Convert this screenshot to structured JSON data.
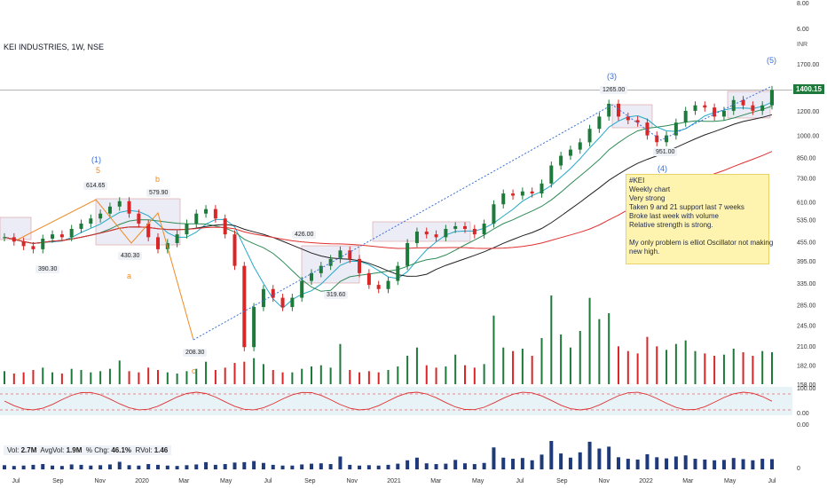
{
  "header": {
    "title": "KEI INDUSTRIES, 1W, NSE",
    "currency": "INR"
  },
  "last_price": "1400.15",
  "note": {
    "lines": [
      "#KEI",
      "Weekly chart",
      "Very strong",
      "Taken 9 and 21 support last 7 weeks",
      "Broke last week with volume",
      "Relative strength is strong.",
      "",
      "My only problem is elliot Oscillator not making",
      "new high."
    ]
  },
  "volume_legend": {
    "vol_label": "Vol:",
    "vol": "2.7M",
    "avgvol_label": "AvgVol:",
    "avgvol": "1.9M",
    "chg_label": "% Chg:",
    "chg": "46.1%",
    "rvol_label": "RVol:",
    "rvol": "1.46"
  },
  "wave_labels": {
    "w1": "(1)",
    "w1b": "5",
    "wb": "b",
    "wa": "a",
    "wc": "c",
    "w3": "(3)",
    "w4": "(4)",
    "w5": "(5)"
  },
  "price_tags": {
    "t614": "614.65",
    "t579": "579.90",
    "t390": "390.30",
    "t430": "430.30",
    "t426": "426.00",
    "t319": "319.60",
    "t208": "208.30",
    "t1265": "1265.00",
    "t951": "951.00"
  },
  "top_axis_ticks": [
    "8.00",
    "6.00"
  ],
  "osc_axis_ticks": [
    "100.00",
    "0.00",
    "0.00"
  ],
  "vol_axis_ticks": [
    "0"
  ],
  "chart_data": {
    "type": "line",
    "scale": "log",
    "x_ticks": [
      "Jul",
      "Sep",
      "Nov",
      "2020",
      "Mar",
      "May",
      "Jul",
      "Sep",
      "Nov",
      "2021",
      "Mar",
      "May",
      "Jul",
      "Sep",
      "Nov",
      "2022",
      "Mar",
      "May",
      "Jul"
    ],
    "y_ticks": [
      "1700.00",
      "1400.15",
      "1200.00",
      "1000.00",
      "850.00",
      "730.00",
      "610.00",
      "535.00",
      "455.00",
      "395.00",
      "335.00",
      "285.00",
      "245.00",
      "210.00",
      "182.00",
      "158.00"
    ],
    "close": [
      470,
      455,
      440,
      430,
      465,
      480,
      470,
      500,
      520,
      540,
      560,
      590,
      614,
      560,
      520,
      470,
      430,
      450,
      480,
      520,
      560,
      579,
      540,
      480,
      380,
      208,
      280,
      320,
      300,
      280,
      300,
      340,
      360,
      380,
      400,
      426,
      400,
      360,
      330,
      320,
      340,
      380,
      450,
      490,
      480,
      470,
      500,
      510,
      500,
      480,
      520,
      600,
      650,
      640,
      660,
      650,
      700,
      800,
      860,
      900,
      950,
      1050,
      1150,
      1265,
      1150,
      1120,
      1100,
      1000,
      951,
      1000,
      1100,
      1200,
      1250,
      1230,
      1150,
      1200,
      1300,
      1250,
      1200,
      1250,
      1400
    ],
    "vol_sample": [
      1.1,
      0.9,
      1.0,
      1.2,
      1.4,
      1.0,
      0.9,
      1.3,
      1.2,
      1.0,
      1.1,
      1.3,
      2.0,
      1.1,
      1.0,
      1.4,
      1.2,
      1.0,
      0.9,
      1.1,
      1.3,
      1.9,
      1.2,
      1.4,
      1.8,
      1.9,
      2.2,
      1.7,
      1.2,
      1.0,
      1.0,
      1.3,
      1.5,
      1.6,
      1.4,
      3.4,
      1.2,
      1.0,
      1.1,
      1.0,
      1.2,
      1.5,
      2.4,
      3.1,
      1.6,
      1.4,
      1.5,
      2.5,
      1.6,
      1.4,
      1.7,
      5.8,
      3.1,
      2.8,
      3.0,
      2.4,
      3.9,
      7.5,
      4.2,
      3.1,
      4.5,
      7.3,
      5.5,
      6.0,
      3.2,
      2.8,
      2.6,
      4.0,
      3.2,
      2.9,
      3.4,
      3.7,
      2.8,
      2.6,
      2.4,
      2.5,
      3.0,
      2.7,
      2.4,
      2.8,
      2.7
    ]
  }
}
